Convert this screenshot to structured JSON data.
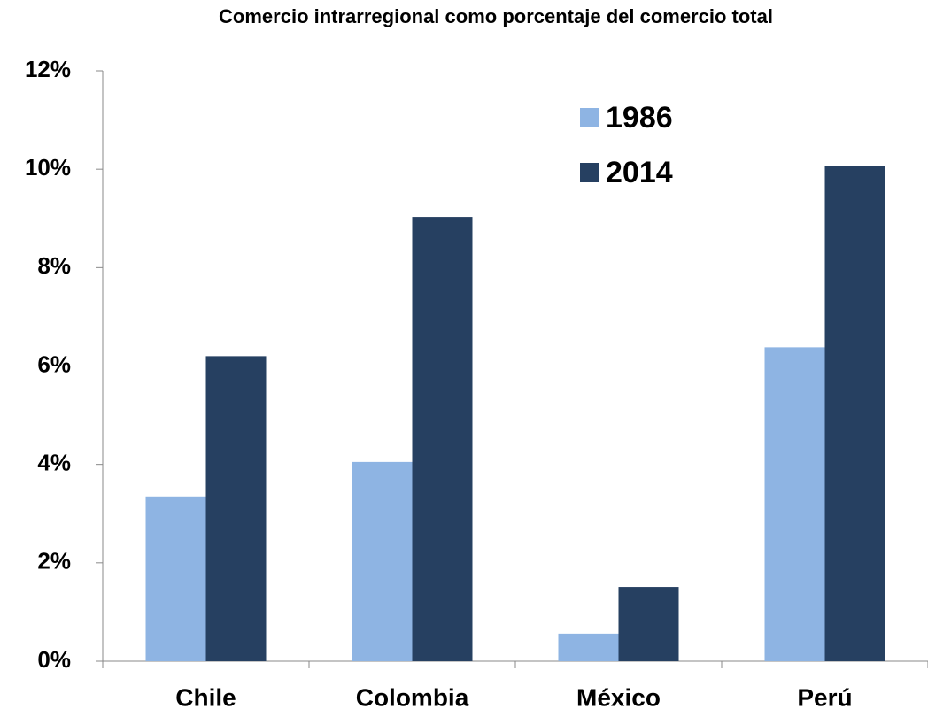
{
  "chart_data": {
    "type": "bar",
    "title": "Comercio intrarregional como porcentaje del comercio total",
    "categories": [
      "Chile",
      "Colombia",
      "México",
      "Perú"
    ],
    "series": [
      {
        "name": "1986",
        "color": "#8eb4e3",
        "values": [
          3.35,
          4.05,
          0.56,
          6.38
        ]
      },
      {
        "name": "2014",
        "color": "#264061",
        "values": [
          6.2,
          9.03,
          1.51,
          10.07
        ]
      }
    ],
    "ylim": [
      0,
      12
    ],
    "yticks": [
      {
        "value": 0,
        "label": "0%"
      },
      {
        "value": 2,
        "label": "2%"
      },
      {
        "value": 4,
        "label": "4%"
      },
      {
        "value": 6,
        "label": "6%"
      },
      {
        "value": 8,
        "label": "8%"
      },
      {
        "value": 10,
        "label": "10%"
      },
      {
        "value": 12,
        "label": "12%"
      }
    ],
    "grid": false,
    "legend": "upper right"
  }
}
